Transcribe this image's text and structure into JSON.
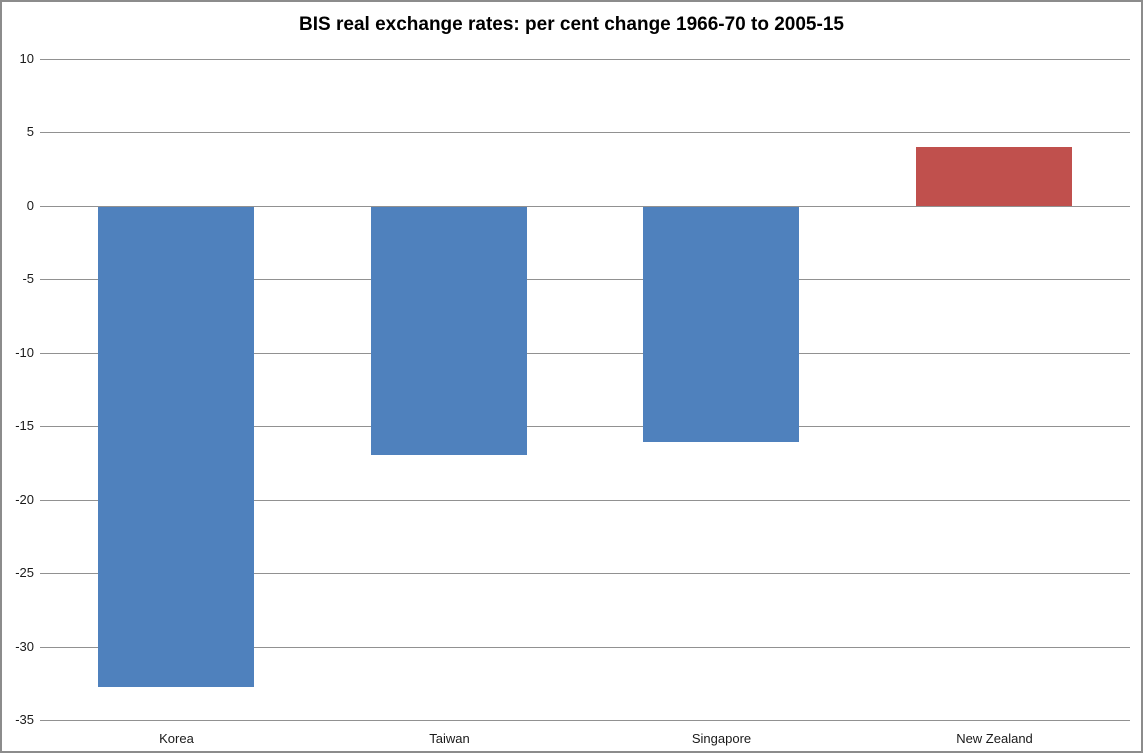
{
  "chart": {
    "title": "BIS real exchange rates: per cent change 1966-70 to 2005-15"
  },
  "chart_data": {
    "type": "bar",
    "title": "BIS real exchange rates: per cent change 1966-70 to 2005-15",
    "categories": [
      "Korea",
      "Taiwan",
      "Singapore",
      "New Zealand"
    ],
    "values": [
      -32.7,
      -16.9,
      -16,
      4
    ],
    "xlabel": "",
    "ylabel": "",
    "ylim": [
      -35,
      10
    ],
    "ytick_step": 5,
    "yticks": [
      10,
      5,
      0,
      -5,
      -10,
      -15,
      -20,
      -25,
      -30,
      -35
    ],
    "grid": true,
    "legend": false,
    "bar_colors": [
      "#4F81BD",
      "#4F81BD",
      "#4F81BD",
      "#C0504D"
    ],
    "series_colors": {
      "negative": "#4F81BD",
      "positive": "#C0504D"
    }
  },
  "colors": {
    "background": "#FFFFFF",
    "frame_border": "#8C8C8C",
    "gridline": "#919191",
    "axis_text": "#1A1A1A",
    "title_text": "#000000",
    "bar_blue": "#4F81BD",
    "bar_red": "#C0504D"
  }
}
